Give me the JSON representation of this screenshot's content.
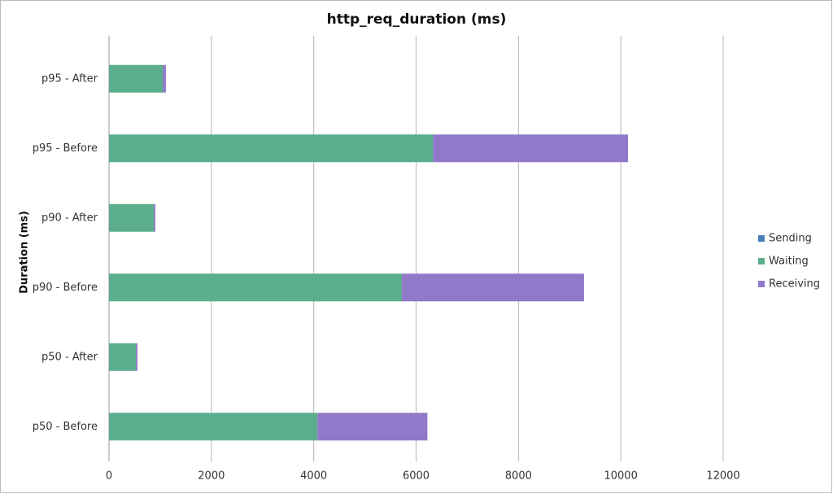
{
  "chart_data": {
    "type": "stacked-bar-horizontal",
    "title": "http_req_duration (ms)",
    "y_label": "Duration (ms)",
    "categories": [
      "p50 - Before",
      "p50 - After",
      "p90 - Before",
      "p90 - After",
      "p95 - Before",
      "p95 - After"
    ],
    "series": [
      {
        "name": "Sending",
        "color": "#4a7ebb",
        "values": [
          1,
          1,
          1,
          1,
          1,
          1
        ]
      },
      {
        "name": "Waiting",
        "color": "#5bae8c",
        "values": [
          4070,
          525,
          5720,
          875,
          6330,
          1050
        ]
      },
      {
        "name": "Receiving",
        "color": "#9079c8",
        "values": [
          2150,
          30,
          3560,
          30,
          3810,
          60
        ]
      }
    ],
    "xlim": [
      0,
      12000
    ],
    "xticks": [
      0,
      2000,
      4000,
      6000,
      8000,
      10000,
      12000
    ],
    "grid": true,
    "legend": "right"
  }
}
